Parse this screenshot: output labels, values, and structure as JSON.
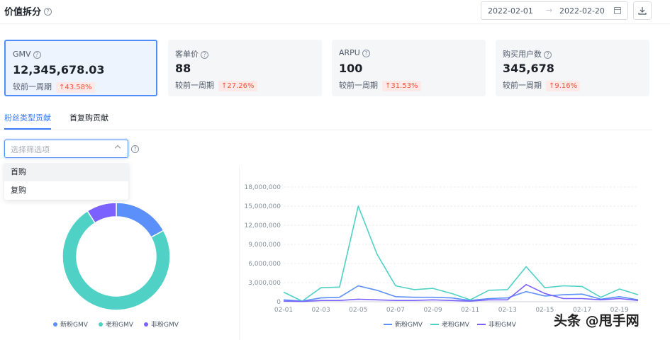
{
  "header": {
    "title": "价值拆分",
    "date_start": "2022-02-01",
    "date_arrow": "→",
    "date_end": "2022-02-20"
  },
  "cards": [
    {
      "label": "GMV",
      "value": "12,345,678.03",
      "compare": "较前一周期",
      "change": "↑43.58%"
    },
    {
      "label": "客单价",
      "value": "88",
      "compare": "较前一周期",
      "change": "↑27.26%"
    },
    {
      "label": "ARPU",
      "value": "100",
      "compare": "较前一周期",
      "change": "↑31.53%"
    },
    {
      "label": "购买用户数",
      "value": "345,678",
      "compare": "较前一周期",
      "change": "↑9.16%"
    }
  ],
  "tabs": [
    {
      "label": "粉丝类型贡献",
      "active": true
    },
    {
      "label": "首复购贡献",
      "active": false
    }
  ],
  "filter": {
    "placeholder": "选择筛选项",
    "options": [
      "首购",
      "复购"
    ]
  },
  "colors": {
    "accent": "#3b7cf7",
    "new_fans": "#5b8ff9",
    "old_fans": "#4fd1c5",
    "non_fans": "#7b61ff",
    "up_change": "#f5533d"
  },
  "chart_data": [
    {
      "type": "pie",
      "donut": true,
      "labels": [
        "新粉GMV",
        "老粉GMV",
        "非粉GMV"
      ],
      "values": [
        17,
        74,
        9
      ],
      "legend": "bottom"
    },
    {
      "type": "line",
      "x": [
        "02-01",
        "02-02",
        "02-03",
        "02-04",
        "02-05",
        "02-06",
        "02-07",
        "02-08",
        "02-09",
        "02-10",
        "02-11",
        "02-12",
        "02-13",
        "02-14",
        "02-15",
        "02-16",
        "02-17",
        "02-18",
        "02-19",
        "02-20"
      ],
      "x_tick_labels": [
        "02-01",
        "02-03",
        "02-05",
        "02-07",
        "02-09",
        "02-11",
        "02-13",
        "02-15",
        "02-17",
        "02-19"
      ],
      "series": [
        {
          "name": "新粉GMV",
          "values": [
            300000,
            100000,
            600000,
            700000,
            2500000,
            1800000,
            800000,
            700000,
            700000,
            600000,
            200000,
            500000,
            600000,
            1600000,
            900000,
            1100000,
            1200000,
            400000,
            800000,
            300000
          ]
        },
        {
          "name": "老粉GMV",
          "values": [
            1500000,
            100000,
            2200000,
            2300000,
            15000000,
            7500000,
            2500000,
            1900000,
            2100000,
            1300000,
            300000,
            1800000,
            1900000,
            5500000,
            2200000,
            2500000,
            2400000,
            700000,
            2000000,
            1100000
          ]
        },
        {
          "name": "非粉GMV",
          "values": [
            100000,
            50000,
            200000,
            200000,
            400000,
            300000,
            200000,
            200000,
            300000,
            200000,
            100000,
            300000,
            300000,
            2700000,
            1300000,
            500000,
            500000,
            300000,
            500000,
            200000
          ]
        }
      ],
      "y_ticks": [
        "0",
        "3,000,000",
        "6,000,000",
        "9,000,000",
        "12,000,000",
        "15,000,000",
        "18,000,000"
      ],
      "ylim": [
        0,
        18000000
      ],
      "grid": true,
      "legend": "bottom"
    }
  ],
  "watermark": "头条 @甩手网"
}
